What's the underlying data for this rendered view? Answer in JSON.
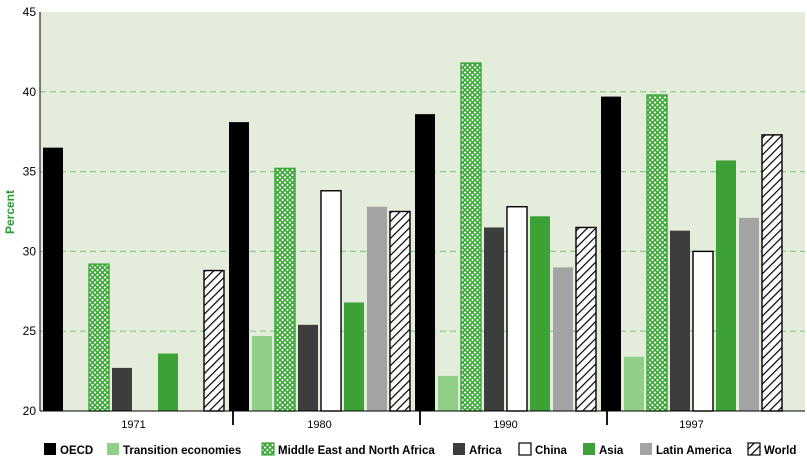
{
  "chart_data": {
    "type": "bar",
    "ylabel": "Percent",
    "ylim": [
      20,
      45
    ],
    "yticks": [
      20,
      25,
      30,
      35,
      40,
      45
    ],
    "grid": "horizontal dashed",
    "legend_position": "bottom",
    "categories": [
      "1971",
      "1980",
      "1990",
      "1997"
    ],
    "series": [
      {
        "name": "OECD",
        "color": "#000000",
        "pattern": "solid",
        "values": [
          36.5,
          38.1,
          38.6,
          39.7
        ]
      },
      {
        "name": "Transition economies",
        "color": "#8fcf88",
        "pattern": "solid",
        "values": [
          null,
          24.7,
          22.2,
          23.4
        ]
      },
      {
        "name": "Middle East and North Africa",
        "color": "#3aa635",
        "pattern": "green-grid",
        "values": [
          29.2,
          35.2,
          41.8,
          39.8
        ]
      },
      {
        "name": "Africa",
        "color": "#3d3d3d",
        "pattern": "solid",
        "values": [
          22.7,
          25.4,
          31.5,
          31.3
        ]
      },
      {
        "name": "China",
        "color": "#ffffff",
        "pattern": "outline",
        "values": [
          null,
          33.8,
          32.8,
          30.0
        ]
      },
      {
        "name": "Asia",
        "color": "#3ca236",
        "pattern": "solid",
        "values": [
          23.6,
          26.8,
          32.2,
          35.7
        ]
      },
      {
        "name": "Latin America",
        "color": "#a3a3a3",
        "pattern": "solid",
        "values": [
          null,
          32.8,
          29.0,
          32.1
        ]
      },
      {
        "name": "World",
        "color": "#ffffff",
        "pattern": "diagonal-hatch",
        "values": [
          28.8,
          32.5,
          31.5,
          37.3
        ]
      }
    ]
  },
  "colors": {
    "plot_background": "#e4ecdc",
    "gridline": "#8cc98a",
    "axis_label": "#2f9a2f"
  }
}
